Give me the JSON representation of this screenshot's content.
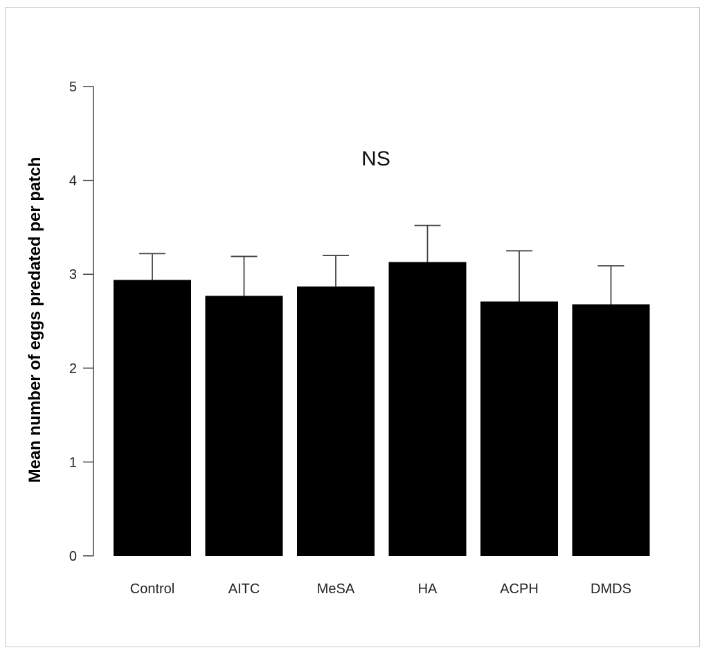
{
  "chart_data": {
    "type": "bar",
    "categories": [
      "Control",
      "AITC",
      "MeSA",
      "HA",
      "ACPH",
      "DMDS"
    ],
    "values": [
      2.94,
      2.77,
      2.87,
      3.13,
      2.71,
      2.68
    ],
    "error_upper": [
      3.22,
      3.19,
      3.2,
      3.52,
      3.25,
      3.09
    ],
    "ylabel": "Mean number of eggs predated per patch",
    "xlabel": "",
    "ylim": [
      0,
      5
    ],
    "yticks": [
      0,
      1,
      2,
      3,
      4,
      5
    ],
    "annotation": "NS",
    "grid": false,
    "bar_color": "#000000"
  }
}
